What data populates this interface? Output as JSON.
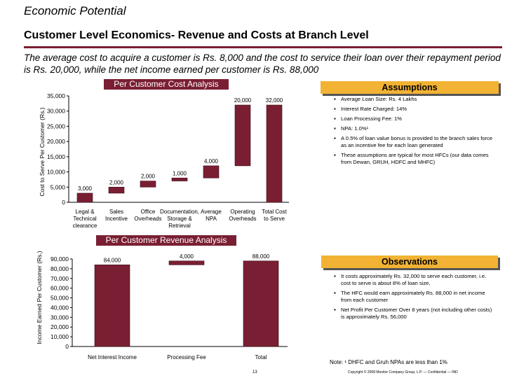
{
  "header": {
    "title": "Economic Potential",
    "subtitle": "Customer Level Economics- Revenue and Costs at Branch Level",
    "intro": "The average cost to acquire a customer is Rs. 8,000  and the cost to service their loan over their repayment period is Rs. 20,000, while the net income earned per customer is Rs. 88,000"
  },
  "colors": {
    "bar": "#7a1f33",
    "accent": "#f2b233"
  },
  "cost_panel": {
    "banner": "Per Customer Cost Analysis",
    "ylabel": "Cost to Serve Per Customer (Rs.)"
  },
  "revenue_panel": {
    "banner": "Per Customer Revenue Analysis",
    "ylabel": "Income Earned Per Customer (Rs.)"
  },
  "chart_data": [
    {
      "type": "bar",
      "subtype": "waterfall",
      "title": "Per Customer Cost Analysis",
      "ylabel": "Cost to Serve Per Customer (Rs.)",
      "ylim": [
        0,
        35000
      ],
      "yticks": [
        "0",
        "5,000",
        "10,000",
        "15,000",
        "20,000",
        "25,000",
        "30,000",
        "35,000"
      ],
      "categories": [
        "Legal & Technical clearance",
        "Sales Incentive",
        "Office Overheads",
        "Documentation, Storage & Retrieval",
        "Average NPA",
        "Operating Overheads",
        "Total Cost to Serve"
      ],
      "category_lines": [
        [
          "Legal &",
          "Technical",
          "clearance"
        ],
        [
          "Sales",
          "Incentive"
        ],
        [
          "Office",
          "Overheads"
        ],
        [
          "Documentation,",
          "Storage &",
          "Retrieval"
        ],
        [
          "Average",
          "NPA"
        ],
        [
          "Operating",
          "Overheads"
        ],
        [
          "Total Cost",
          "to Serve"
        ]
      ],
      "bars": [
        {
          "start": 0,
          "end": 3000,
          "label": "3,000"
        },
        {
          "start": 3000,
          "end": 5000,
          "label": "2,000"
        },
        {
          "start": 5000,
          "end": 7000,
          "label": "2,000"
        },
        {
          "start": 7000,
          "end": 8000,
          "label": "1,000"
        },
        {
          "start": 8000,
          "end": 12000,
          "label": "4,000"
        },
        {
          "start": 12000,
          "end": 32000,
          "label": "20,000"
        },
        {
          "start": 0,
          "end": 32000,
          "label": "32,000"
        }
      ]
    },
    {
      "type": "bar",
      "subtype": "waterfall",
      "title": "Per Customer Revenue Analysis",
      "ylabel": "Income Earned Per Customer (Rs.)",
      "ylim": [
        0,
        90000
      ],
      "yticks": [
        "0",
        "10,000",
        "20,000",
        "30,000",
        "40,000",
        "50,000",
        "60,000",
        "70,000",
        "80,000",
        "90,000"
      ],
      "categories": [
        "Net Interest Income",
        "Processing Fee",
        "Total"
      ],
      "category_lines": [
        [
          "Net Interest Income"
        ],
        [
          "Processing Fee"
        ],
        [
          "Total"
        ]
      ],
      "bars": [
        {
          "start": 0,
          "end": 84000,
          "label": "84,000"
        },
        {
          "start": 84000,
          "end": 88000,
          "label": "4,000"
        },
        {
          "start": 0,
          "end": 88000,
          "label": "88,000"
        }
      ]
    }
  ],
  "assumptions": {
    "heading": "Assumptions",
    "items": [
      "Average Loan Size: Rs. 4 Lakhs",
      "Interest Rate Charged: 14%",
      "Loan Processing Fee: 1%",
      "NPA: 1.0%¹",
      "A 0.5% of loan value bonus is provided to the branch sales force as an incentive fee for each loan generated",
      "These assumptions are typical for most HFCs (our data comes from Dewan, GRUH, HDFC and MHFC)"
    ]
  },
  "observations": {
    "heading": "Observations",
    "items": [
      "It costs approximately Rs. 32,000 to serve each customer, i.e. cost to serve is about 8% of loan size,",
      "The HFC would earn approximately Rs. 88,000 in net income from each customer",
      "Net Profit Per Customer Over 8 years (not including other costs) is approximately Rs. 56,000"
    ]
  },
  "footer": {
    "note": "Note: ¹ DHFC and Gruh NPAs are less than 1%",
    "page": "13",
    "copyright": "Copyright © 2008 Monitor Company Group, L.P. — Confidential — IND"
  }
}
